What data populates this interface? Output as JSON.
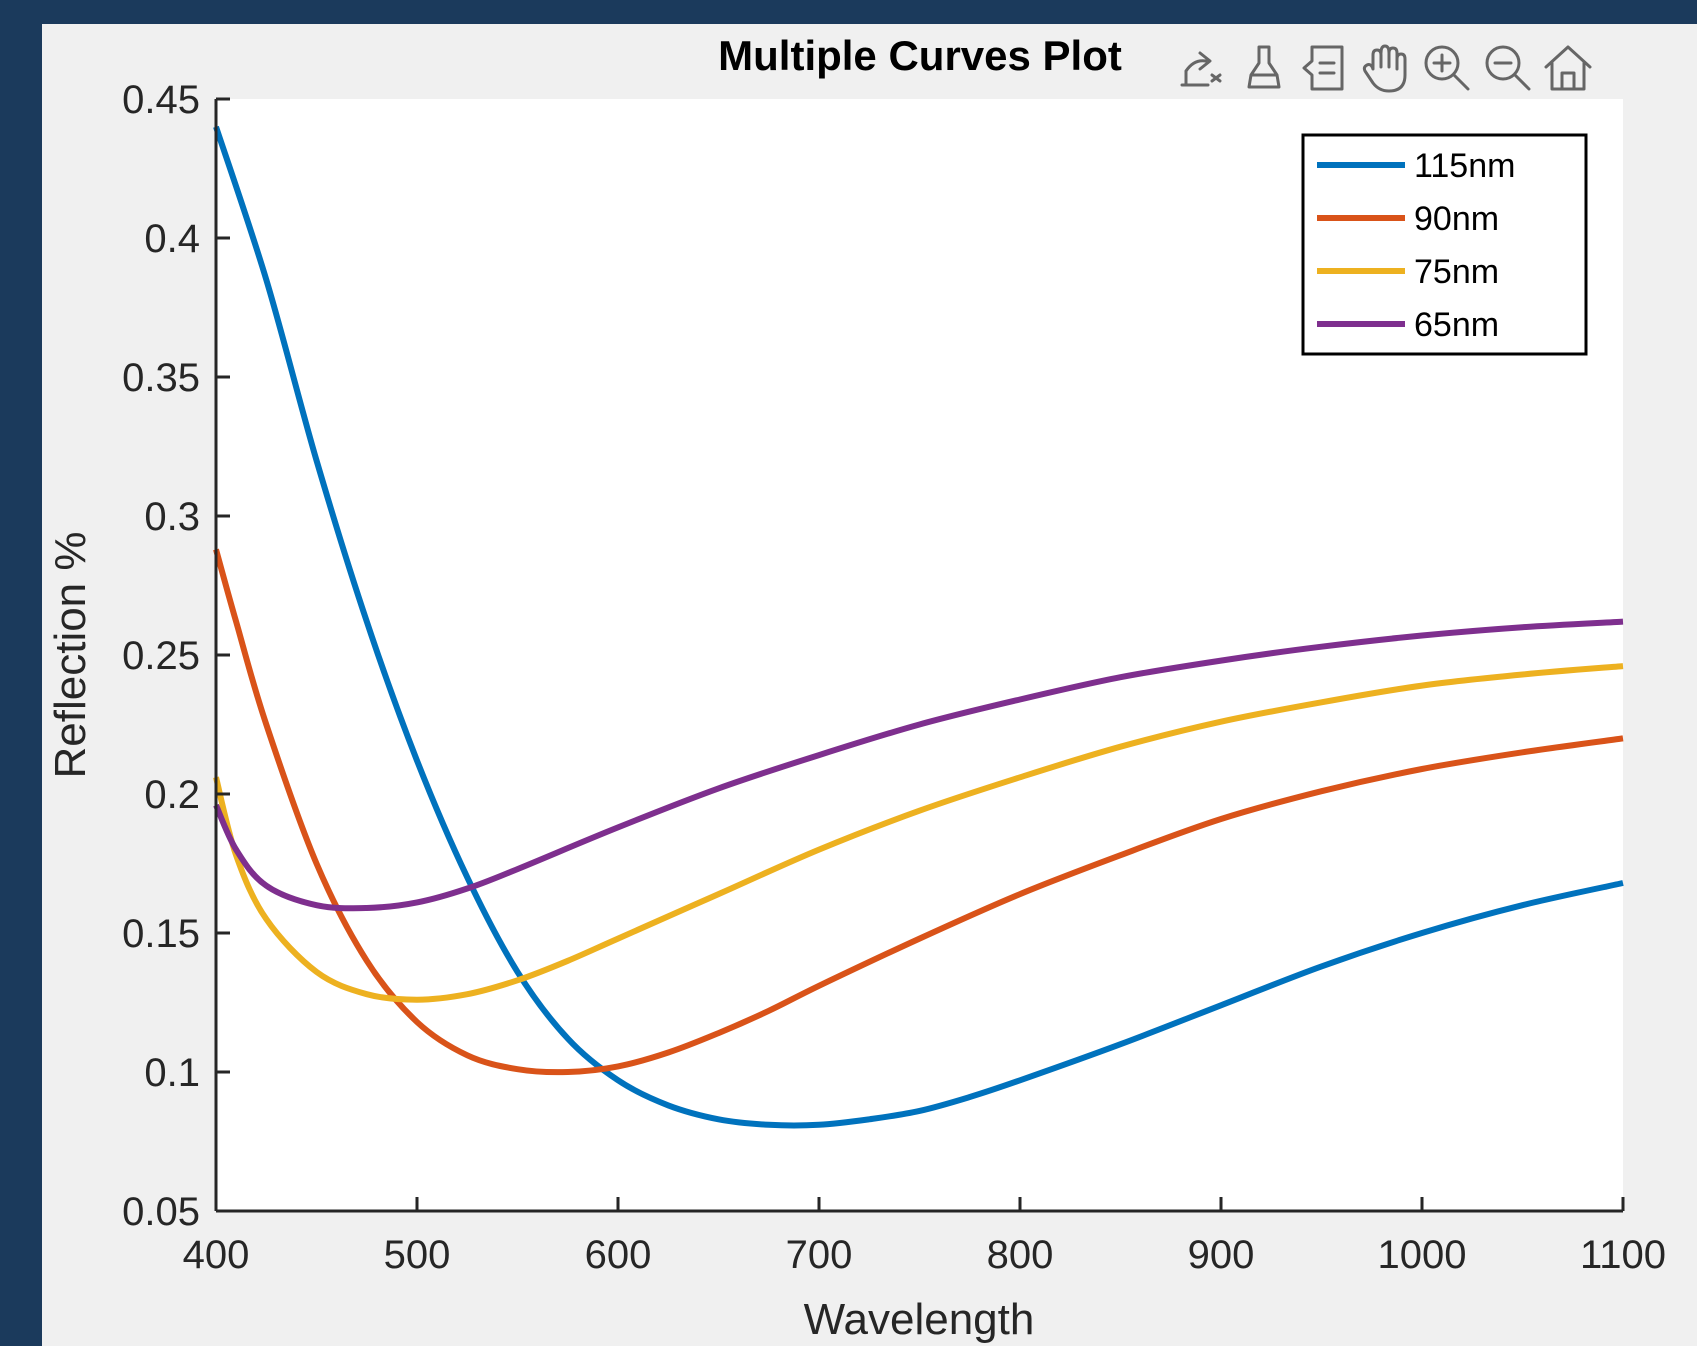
{
  "figure": {
    "background": "#f0f0f0",
    "toolbar": [
      {
        "icon": "export-icon"
      },
      {
        "icon": "brush-icon"
      },
      {
        "icon": "data-tips-icon"
      },
      {
        "icon": "pan-hand-icon"
      },
      {
        "icon": "zoom-in-icon"
      },
      {
        "icon": "zoom-out-icon"
      },
      {
        "icon": "home-icon"
      }
    ]
  },
  "chart_data": {
    "type": "line",
    "title": "Multiple Curves Plot",
    "xlabel": "Wavelength",
    "ylabel": "Reflection %",
    "xlim": [
      400,
      1100
    ],
    "ylim": [
      0.05,
      0.45
    ],
    "xticks": [
      400,
      500,
      600,
      700,
      800,
      900,
      1000,
      1100
    ],
    "yticks": [
      0.05,
      0.1,
      0.15,
      0.2,
      0.25,
      0.3,
      0.35,
      0.4,
      0.45
    ],
    "xtick_labels": [
      "400",
      "500",
      "600",
      "700",
      "800",
      "900",
      "1000",
      "1100"
    ],
    "ytick_labels": [
      "0.05",
      "0.1",
      "0.15",
      "0.2",
      "0.25",
      "0.3",
      "0.35",
      "0.4",
      "0.45"
    ],
    "grid": false,
    "legend_position": "top-right",
    "series": [
      {
        "name": "115nm",
        "color": "#0072bd",
        "x": [
          400,
          425,
          450,
          475,
          500,
          525,
          550,
          575,
          600,
          625,
          650,
          675,
          700,
          725,
          750,
          775,
          800,
          850,
          900,
          950,
          1000,
          1050,
          1100
        ],
        "y": [
          0.44,
          0.385,
          0.32,
          0.262,
          0.212,
          0.17,
          0.136,
          0.112,
          0.097,
          0.088,
          0.083,
          0.081,
          0.081,
          0.083,
          0.086,
          0.091,
          0.097,
          0.11,
          0.124,
          0.138,
          0.15,
          0.16,
          0.168
        ]
      },
      {
        "name": "90nm",
        "color": "#d95319",
        "x": [
          400,
          410,
          425,
          450,
          475,
          500,
          525,
          550,
          575,
          600,
          625,
          650,
          675,
          700,
          750,
          800,
          850,
          900,
          950,
          1000,
          1050,
          1100
        ],
        "y": [
          0.288,
          0.262,
          0.225,
          0.175,
          0.14,
          0.118,
          0.106,
          0.101,
          0.1,
          0.102,
          0.107,
          0.114,
          0.122,
          0.131,
          0.148,
          0.164,
          0.178,
          0.191,
          0.201,
          0.209,
          0.215,
          0.22
        ]
      },
      {
        "name": "75nm",
        "color": "#edb120",
        "x": [
          400,
          410,
          425,
          450,
          475,
          500,
          525,
          550,
          575,
          600,
          650,
          700,
          750,
          800,
          850,
          900,
          950,
          1000,
          1050,
          1100
        ],
        "y": [
          0.206,
          0.178,
          0.155,
          0.136,
          0.128,
          0.126,
          0.128,
          0.133,
          0.14,
          0.148,
          0.164,
          0.18,
          0.194,
          0.206,
          0.217,
          0.226,
          0.233,
          0.239,
          0.243,
          0.246
        ]
      },
      {
        "name": "65nm",
        "color": "#7e2f8e",
        "x": [
          400,
          410,
          425,
          450,
          475,
          500,
          525,
          550,
          600,
          650,
          700,
          750,
          800,
          850,
          900,
          950,
          1000,
          1050,
          1100
        ],
        "y": [
          0.196,
          0.18,
          0.167,
          0.16,
          0.159,
          0.161,
          0.166,
          0.173,
          0.188,
          0.202,
          0.214,
          0.225,
          0.234,
          0.242,
          0.248,
          0.253,
          0.257,
          0.26,
          0.262
        ]
      }
    ]
  }
}
